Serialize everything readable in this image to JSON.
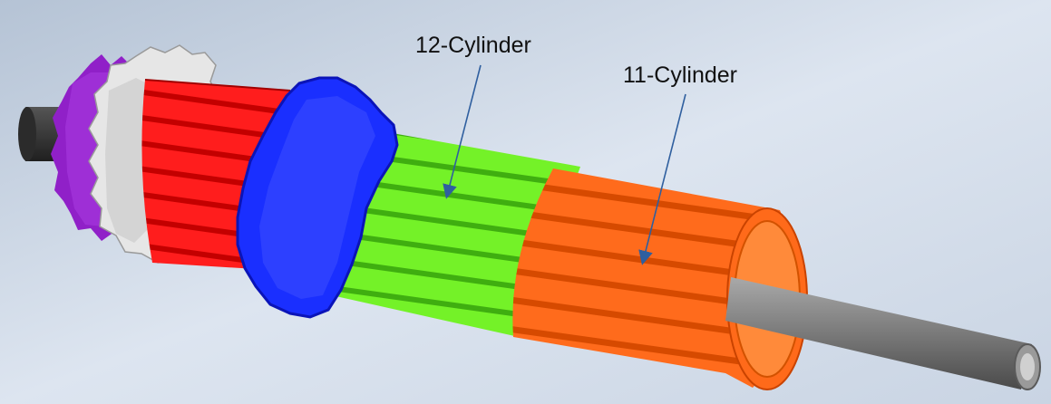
{
  "diagram": {
    "labels": {
      "cylinder_12": "12-Cylinder",
      "cylinder_11": "11-Cylinder"
    },
    "parts": [
      {
        "name": "shaft-left",
        "color": "#3b3b3b"
      },
      {
        "name": "purple-gear",
        "color": "#8f1cc7"
      },
      {
        "name": "white-gear",
        "color": "#e8e8e8"
      },
      {
        "name": "red-cylinder",
        "color": "#ff1a1a"
      },
      {
        "name": "blue-gear",
        "color": "#1a2cff"
      },
      {
        "name": "green-cylinder",
        "color": "#6cf01e"
      },
      {
        "name": "orange-cylinder",
        "color": "#ff6a1a"
      },
      {
        "name": "shaft-right",
        "color": "#7e7e7e"
      }
    ],
    "colors": {
      "background_light": "#e6edf6",
      "background_dark": "#b7c4d6",
      "callout_arrow": "#2f5f9f"
    }
  }
}
